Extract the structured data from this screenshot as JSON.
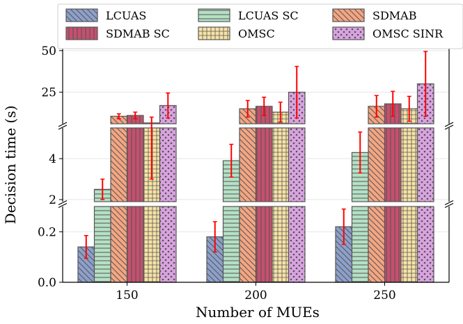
{
  "chart_data": {
    "type": "bar",
    "title": "",
    "xlabel": "Number of MUEs",
    "ylabel": "Decision time (s)",
    "categories": [
      "150",
      "200",
      "250"
    ],
    "y_axis_broken": true,
    "y_segments": [
      {
        "name": "bottom",
        "ylim": [
          0,
          0.3
        ],
        "ticks": [
          "0.0",
          "0.2"
        ]
      },
      {
        "name": "middle",
        "ylim": [
          1.9,
          5.5
        ],
        "ticks": [
          "2",
          "4"
        ]
      },
      {
        "name": "top",
        "ylim": [
          6,
          52
        ],
        "ticks": [
          "25",
          "50"
        ]
      }
    ],
    "series": [
      {
        "name": "LCUAS",
        "values": [
          0.14,
          0.18,
          0.22
        ],
        "errors": [
          0.045,
          0.06,
          0.07
        ],
        "color": "#8da0cb",
        "hatch": "diagonal-back"
      },
      {
        "name": "LCUAS SC",
        "values": [
          2.5,
          3.9,
          4.3
        ],
        "errors": [
          0.5,
          0.8,
          1.0
        ],
        "color": "#b5e0c4",
        "hatch": "horizontal"
      },
      {
        "name": "SDMAB",
        "values": [
          10.5,
          15.0,
          16.5
        ],
        "errors": [
          1.5,
          5.0,
          6.5
        ],
        "color": "#f4a582",
        "hatch": "diagonal-back"
      },
      {
        "name": "SDMAB SC",
        "values": [
          11.0,
          16.5,
          18.0
        ],
        "errors": [
          2.0,
          5.5,
          7.5
        ],
        "color": "#c4506e",
        "hatch": "vertical"
      },
      {
        "name": "OMSC",
        "values": [
          6.5,
          13.0,
          15.0
        ],
        "errors": [
          3.5,
          6.0,
          7.5
        ],
        "color": "#f7e3a6",
        "hatch": "grid"
      },
      {
        "name": "OMSC SINR",
        "values": [
          17.0,
          25.0,
          30.0
        ],
        "errors": [
          7.5,
          15.5,
          19.5
        ],
        "color": "#d9a3e0",
        "hatch": "dots"
      }
    ],
    "error_color": "#ff0000",
    "legend": {
      "placement": "top",
      "columns": 3
    },
    "grid": "y"
  }
}
